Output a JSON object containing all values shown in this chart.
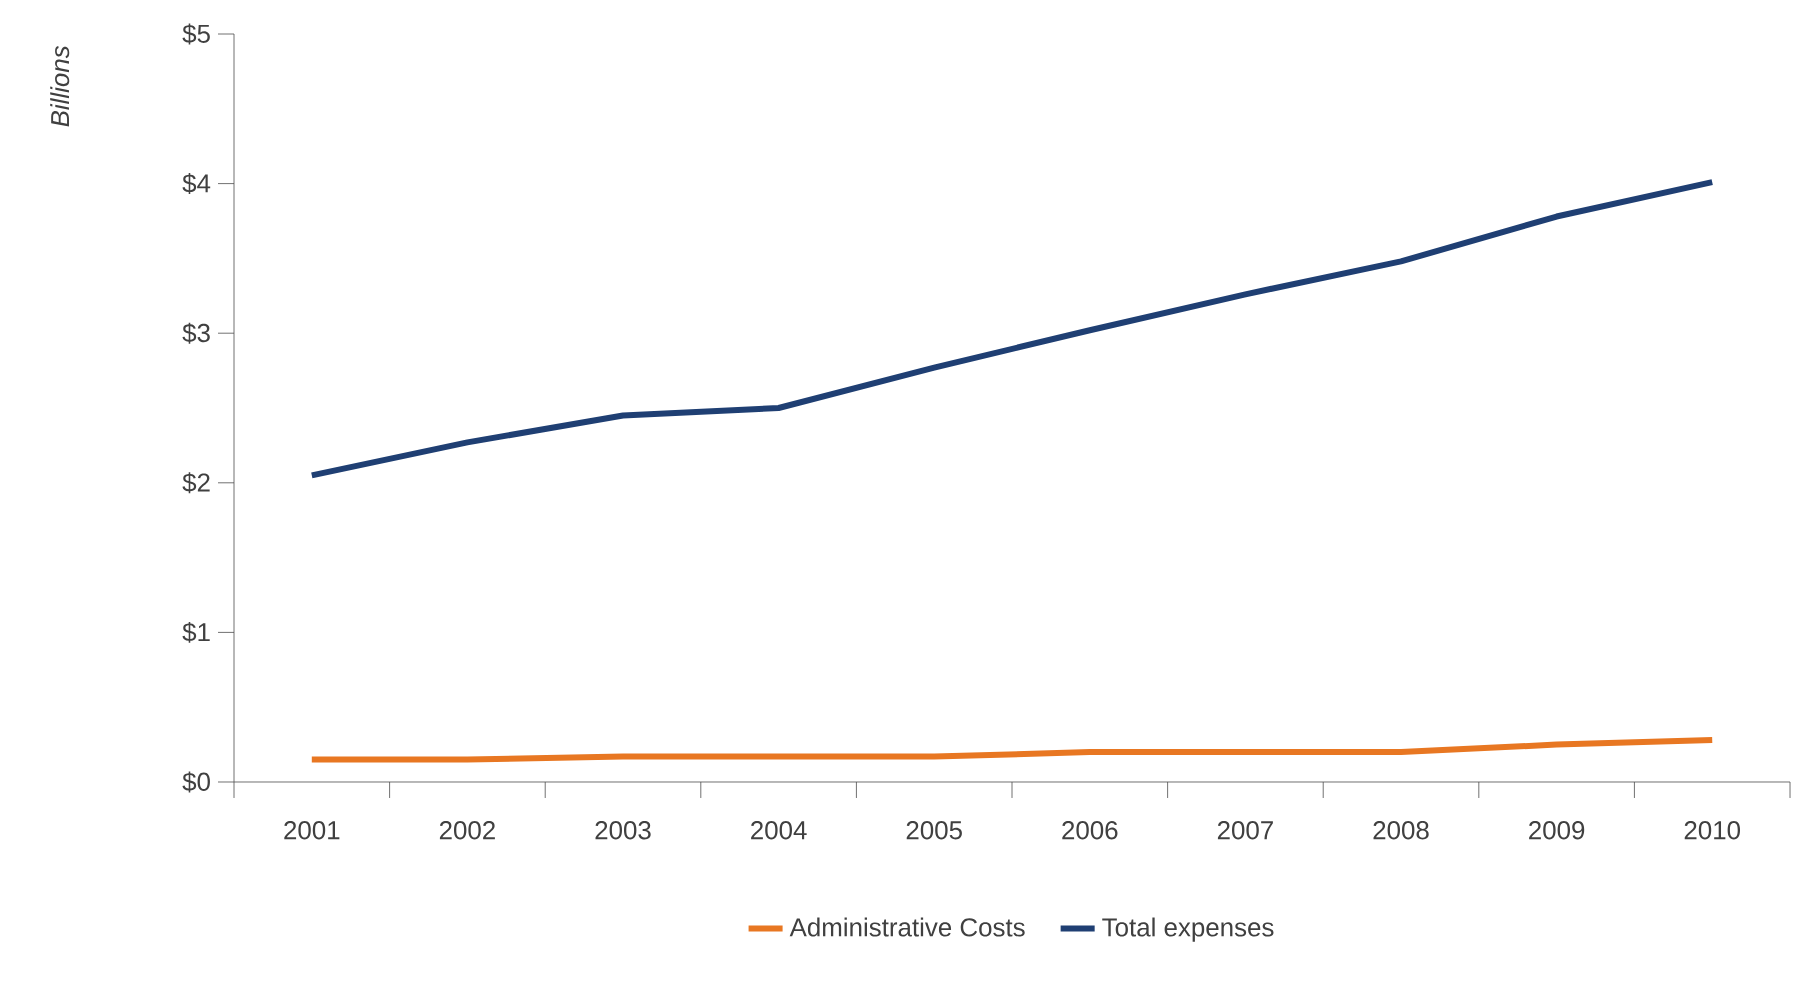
{
  "chart_data": {
    "type": "line",
    "ylabel": "Billions",
    "categories": [
      "2001",
      "2002",
      "2003",
      "2004",
      "2005",
      "2006",
      "2007",
      "2008",
      "2009",
      "2010"
    ],
    "series": [
      {
        "name": "Administrative Costs",
        "color": "#e87722",
        "values": [
          0.15,
          0.15,
          0.17,
          0.17,
          0.17,
          0.2,
          0.2,
          0.2,
          0.25,
          0.28
        ]
      },
      {
        "name": "Total expenses",
        "color": "#1f3f73",
        "values": [
          2.05,
          2.27,
          2.45,
          2.5,
          2.77,
          3.02,
          3.26,
          3.48,
          3.78,
          4.01
        ]
      }
    ],
    "ylim": [
      0,
      5
    ],
    "yticks": [
      {
        "value": 0,
        "label": "$0"
      },
      {
        "value": 1,
        "label": "$1"
      },
      {
        "value": 2,
        "label": "$2"
      },
      {
        "value": 3,
        "label": "$3"
      },
      {
        "value": 4,
        "label": "$4"
      },
      {
        "value": 5,
        "label": "$5"
      }
    ],
    "grid": false,
    "legend": "bottom",
    "marker": "none",
    "line_style": "solid"
  }
}
